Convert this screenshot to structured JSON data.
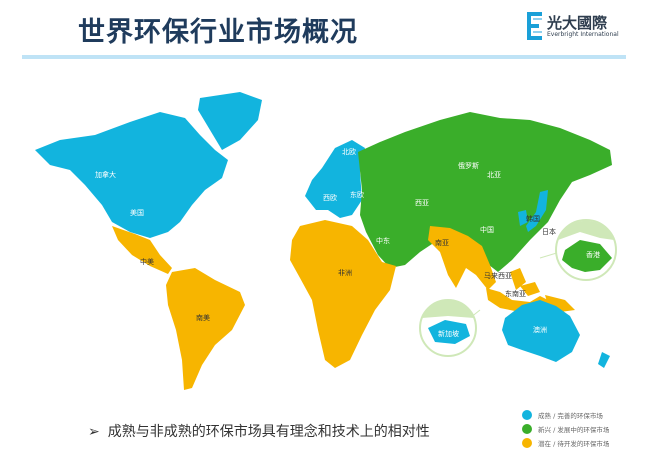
{
  "header": {
    "title": "世界环保行业市场概况",
    "logo_cn": "光大國際",
    "logo_en": "Everbright International"
  },
  "colors": {
    "mature": "#12b4de",
    "emerging": "#3aae2a",
    "potential": "#f7b500",
    "rule": "#bfe3f6",
    "inset": "#cfe8b8"
  },
  "map": {
    "labels": {
      "canada": "加拿大",
      "usa": "美国",
      "central_america": "中美",
      "south_america": "南美",
      "africa": "非洲",
      "north_europe": "北欧",
      "west_europe": "西欧",
      "east_europe": "东欧",
      "russia": "俄罗斯",
      "north_asia": "北亚",
      "west_asia": "西亚",
      "middle_east": "中东",
      "south_asia": "南亚",
      "china": "中国",
      "korea": "韩国",
      "japan": "日本",
      "hong_kong": "香港",
      "malaysia": "马来西亚",
      "southeast_asia": "东南亚",
      "singapore": "新加坡",
      "australia": "澳洲"
    }
  },
  "bullet": {
    "arrow": "➢",
    "text": "成熟与非成熟的环保市场具有理念和技术上的相对性"
  },
  "legend": [
    {
      "label": "成熟 / 完善的环保市场",
      "color": "#12b4de"
    },
    {
      "label": "新兴 / 发展中的环保市场",
      "color": "#3aae2a"
    },
    {
      "label": "潜在 / 待开发的环保市场",
      "color": "#f7b500"
    }
  ]
}
